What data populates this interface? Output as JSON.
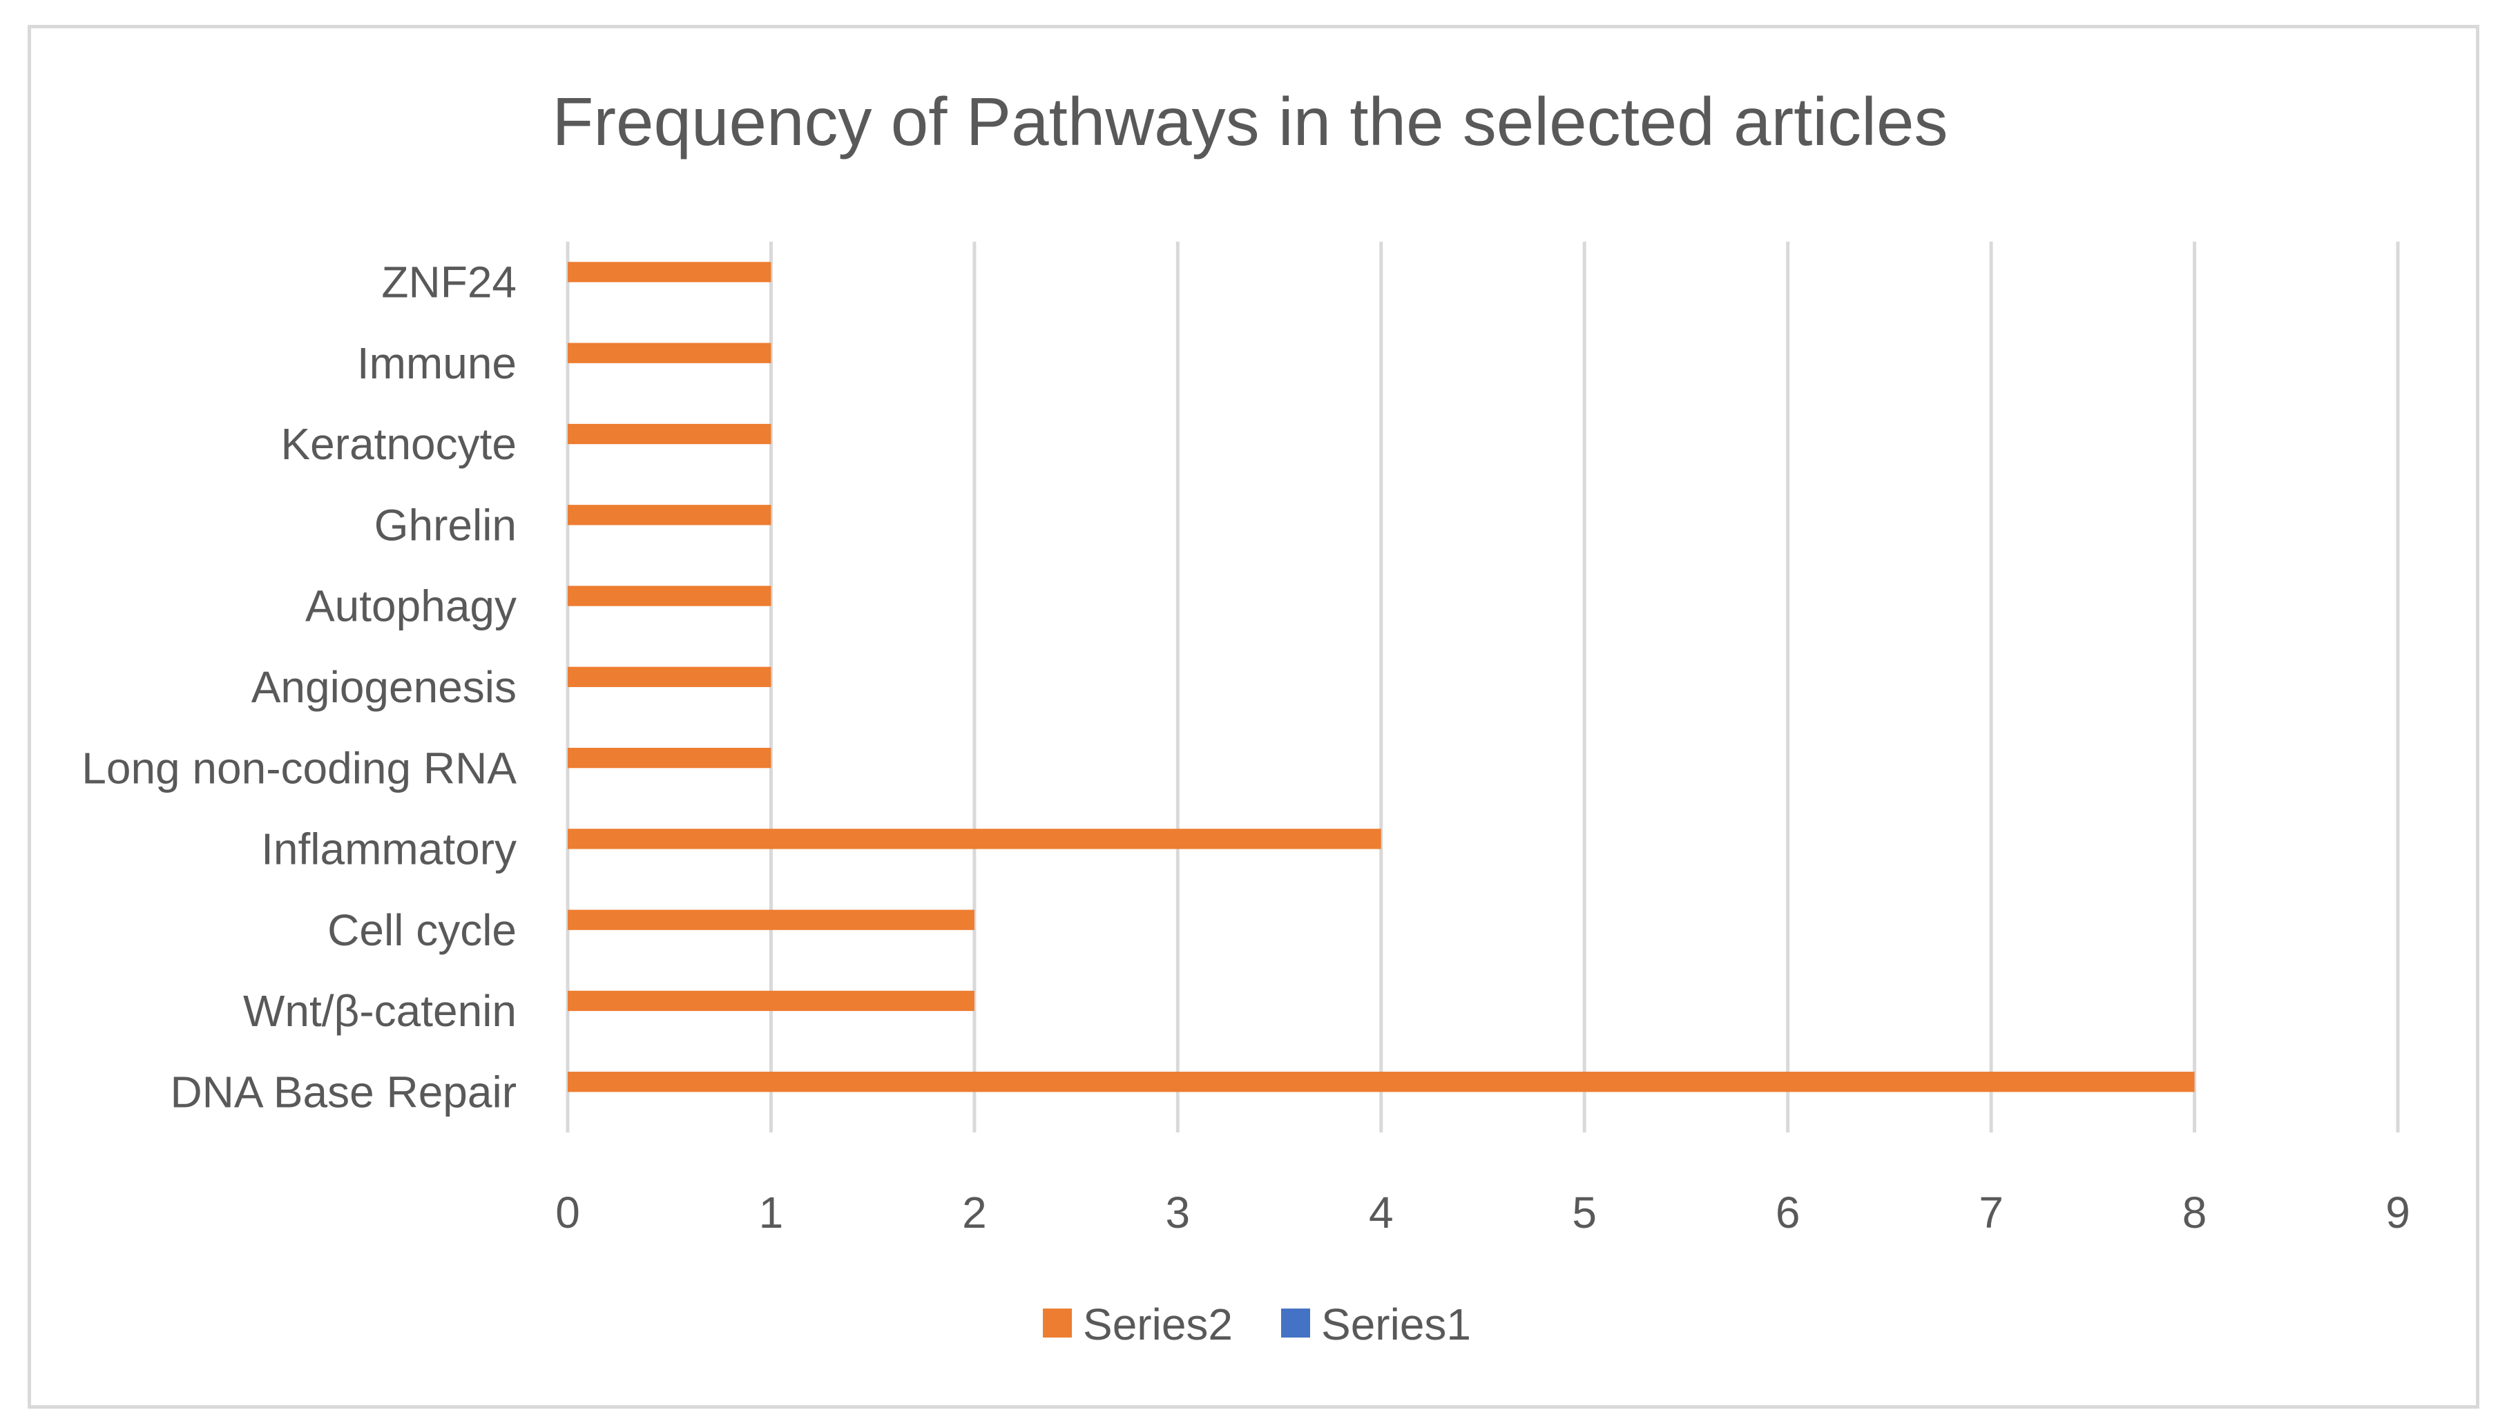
{
  "chart_data": {
    "type": "bar",
    "orientation": "horizontal",
    "title": "Frequency of Pathways in the selected articles",
    "categories": [
      "DNA Base Repair",
      "Wnt/β-catenin",
      "Cell cycle",
      "Inflammatory",
      "Long non-coding RNA",
      "Angiogenesis",
      "Autophagy",
      "Ghrelin",
      "Keratnocyte",
      "Immune",
      "ZNF24"
    ],
    "series": [
      {
        "name": "Series1",
        "values": [
          0,
          0,
          0,
          0,
          0,
          0,
          0,
          0,
          0,
          0,
          0
        ],
        "color": "#4472c4"
      },
      {
        "name": "Series2",
        "values": [
          8,
          2,
          2,
          4,
          1,
          1,
          1,
          1,
          1,
          1,
          1
        ],
        "color": "#ed7d31"
      }
    ],
    "xlim": [
      0,
      9
    ],
    "xticks": [
      "0",
      "1",
      "2",
      "3",
      "4",
      "5",
      "6",
      "7",
      "8",
      "9"
    ],
    "grid": true,
    "legend_position": "bottom",
    "legend": [
      "Series2",
      "Series1"
    ],
    "colors": {
      "gridline": "#d9d9d9",
      "text": "#595959",
      "border": "#d9d9d9"
    }
  }
}
